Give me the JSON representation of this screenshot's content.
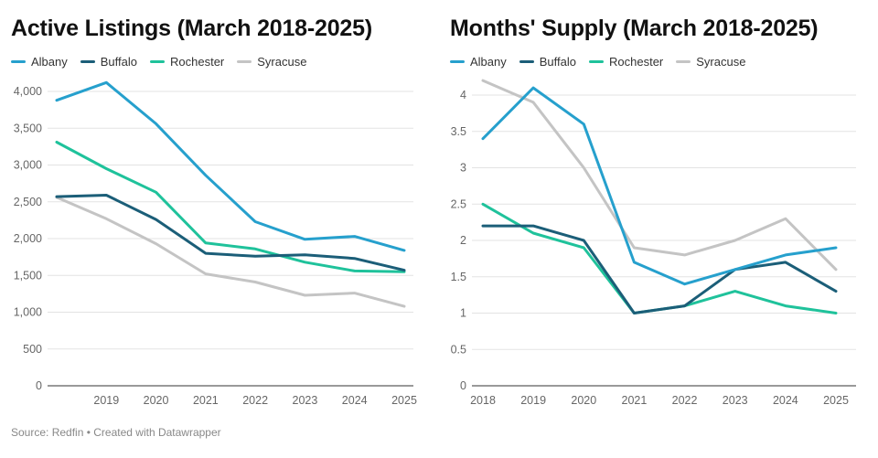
{
  "footer": {
    "text": "Source: Redfin • Created with Datawrapper"
  },
  "colors": {
    "Albany": "#26a0cd",
    "Buffalo": "#1b5e78",
    "Rochester": "#1fc29b",
    "Syracuse": "#c4c4c4"
  },
  "chart_data": [
    {
      "type": "line",
      "title": "Active Listings (March 2018-2025)",
      "x": [
        2018,
        2019,
        2020,
        2021,
        2022,
        2023,
        2024,
        2025
      ],
      "x_tick_labels": [
        "",
        "2019",
        "2020",
        "2021",
        "2022",
        "2023",
        "2024",
        "2025"
      ],
      "y_ticks": [
        0,
        500,
        1000,
        1500,
        2000,
        2500,
        3000,
        3500,
        4000
      ],
      "y_tick_labels": [
        "0",
        "500",
        "1,000",
        "1,500",
        "2,000",
        "2,500",
        "3,000",
        "3,500",
        "4,000"
      ],
      "ylim": [
        0,
        4000
      ],
      "series": [
        {
          "name": "Albany",
          "values": [
            3880,
            4120,
            3560,
            2860,
            2230,
            1990,
            2030,
            1840
          ]
        },
        {
          "name": "Buffalo",
          "values": [
            2570,
            2590,
            2260,
            1800,
            1760,
            1780,
            1730,
            1570
          ]
        },
        {
          "name": "Rochester",
          "values": [
            3310,
            2950,
            2630,
            1940,
            1860,
            1680,
            1560,
            1550
          ]
        },
        {
          "name": "Syracuse",
          "values": [
            2560,
            2270,
            1930,
            1520,
            1410,
            1230,
            1260,
            1080
          ]
        }
      ]
    },
    {
      "type": "line",
      "title": "Months' Supply (March 2018-2025)",
      "x": [
        2018,
        2019,
        2020,
        2021,
        2022,
        2023,
        2024,
        2025
      ],
      "x_tick_labels": [
        "2018",
        "2019",
        "2020",
        "2021",
        "2022",
        "2023",
        "2024",
        "2025"
      ],
      "y_ticks": [
        0,
        0.5,
        1,
        1.5,
        2,
        2.5,
        3,
        3.5,
        4
      ],
      "y_tick_labels": [
        "0",
        "0.5",
        "1",
        "1.5",
        "2",
        "2.5",
        "3",
        "3.5",
        "4"
      ],
      "ylim": [
        0,
        4
      ],
      "series": [
        {
          "name": "Albany",
          "values": [
            3.4,
            4.1,
            3.6,
            1.7,
            1.4,
            1.6,
            1.8,
            1.9
          ]
        },
        {
          "name": "Buffalo",
          "values": [
            2.2,
            2.2,
            2.0,
            1.0,
            1.1,
            1.6,
            1.7,
            1.3
          ]
        },
        {
          "name": "Rochester",
          "values": [
            2.5,
            2.1,
            1.9,
            1.0,
            1.1,
            1.3,
            1.1,
            1.0
          ]
        },
        {
          "name": "Syracuse",
          "values": [
            4.2,
            3.9,
            3.0,
            1.9,
            1.8,
            2.0,
            2.3,
            1.6
          ]
        }
      ]
    }
  ]
}
